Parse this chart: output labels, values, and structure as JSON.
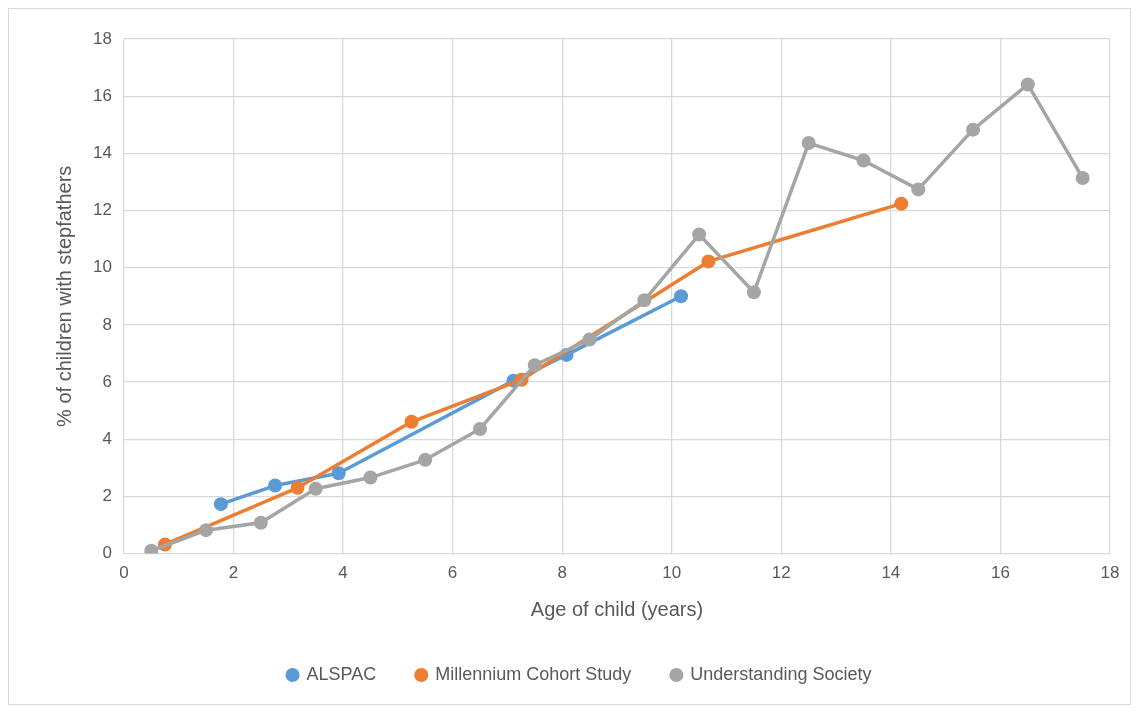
{
  "chart_data": {
    "type": "line",
    "xlabel": "Age of child (years)",
    "ylabel": "% of children with stepfathers",
    "xlim": [
      0,
      18
    ],
    "xticks": [
      0,
      2,
      4,
      6,
      8,
      10,
      12,
      14,
      16,
      18
    ],
    "ylim": [
      0,
      18
    ],
    "yticks": [
      0,
      2,
      4,
      6,
      8,
      10,
      12,
      14,
      16,
      18
    ],
    "grid": true,
    "legend": "bottom",
    "marker": "circle",
    "line_style": "solid",
    "series": [
      {
        "name": "ALSPAC",
        "color": "#5b9bd5",
        "x": [
          1.77,
          2.76,
          3.92,
          7.11,
          8.08,
          10.17
        ],
        "values": [
          1.73,
          2.38,
          2.81,
          6.05,
          6.95,
          9.0
        ]
      },
      {
        "name": "Millennium Cohort Study",
        "color": "#ed7d31",
        "x": [
          0.75,
          3.17,
          5.25,
          7.26,
          10.67,
          14.19
        ],
        "values": [
          0.32,
          2.3,
          4.61,
          6.08,
          10.22,
          12.24
        ]
      },
      {
        "name": "Understanding Society",
        "color": "#a5a5a5",
        "x": [
          0.5,
          1.5,
          2.5,
          3.5,
          4.5,
          5.5,
          6.5,
          7.5,
          8.5,
          9.5,
          10.5,
          11.5,
          12.5,
          13.5,
          14.5,
          15.5,
          16.5,
          17.5
        ],
        "values": [
          0.1,
          0.82,
          1.08,
          2.27,
          2.66,
          3.28,
          4.36,
          6.59,
          7.49,
          8.86,
          11.16,
          9.14,
          14.36,
          13.75,
          12.74,
          14.83,
          16.41,
          13.14
        ]
      }
    ]
  }
}
